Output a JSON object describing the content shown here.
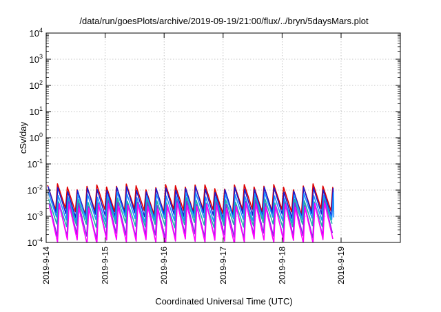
{
  "chart_data": {
    "type": "line",
    "title": "/data/run/goesPlots/archive/2019-09-19/21:00/flux/../bryn/5daysMars.plot",
    "xlabel": "Coordinated Universal Time (UTC)",
    "ylabel": "cSv/day",
    "y_scale": "log",
    "ylim": [
      0.0001,
      10000
    ],
    "xlim": [
      "2019-09-14",
      "2019-09-19 21:00"
    ],
    "x_ticks": [
      "2019-9-14",
      "2019-9-15",
      "2019-9-16",
      "2019-9-17",
      "2019-9-18",
      "2019-9-19"
    ],
    "y_ticks": [
      {
        "base": "10",
        "exp": "-4"
      },
      {
        "base": "10",
        "exp": "-3"
      },
      {
        "base": "10",
        "exp": "-2"
      },
      {
        "base": "10",
        "exp": "-1"
      },
      {
        "base": "10",
        "exp": "0"
      },
      {
        "base": "10",
        "exp": "1"
      },
      {
        "base": "10",
        "exp": "2"
      },
      {
        "base": "10",
        "exp": "3"
      },
      {
        "base": "10",
        "exp": "4"
      }
    ],
    "grid": true,
    "sawtooth_period_hours": 4,
    "series": [
      {
        "color": "#e00000",
        "peak": 0.014,
        "trough": 0.0016
      },
      {
        "color": "#1a1ad0",
        "peak": 0.011,
        "trough": 0.0011
      },
      {
        "color": "#1e90ff",
        "peak": 0.0065,
        "trough": 0.00075
      },
      {
        "color": "#20b2aa",
        "peak": 0.004,
        "trough": 0.00045
      },
      {
        "color": "#8a2be2",
        "peak": 0.0032,
        "trough": 0.00018
      },
      {
        "color": "#ff00ff",
        "peak": 0.0026,
        "trough": 0.00011
      }
    ]
  }
}
